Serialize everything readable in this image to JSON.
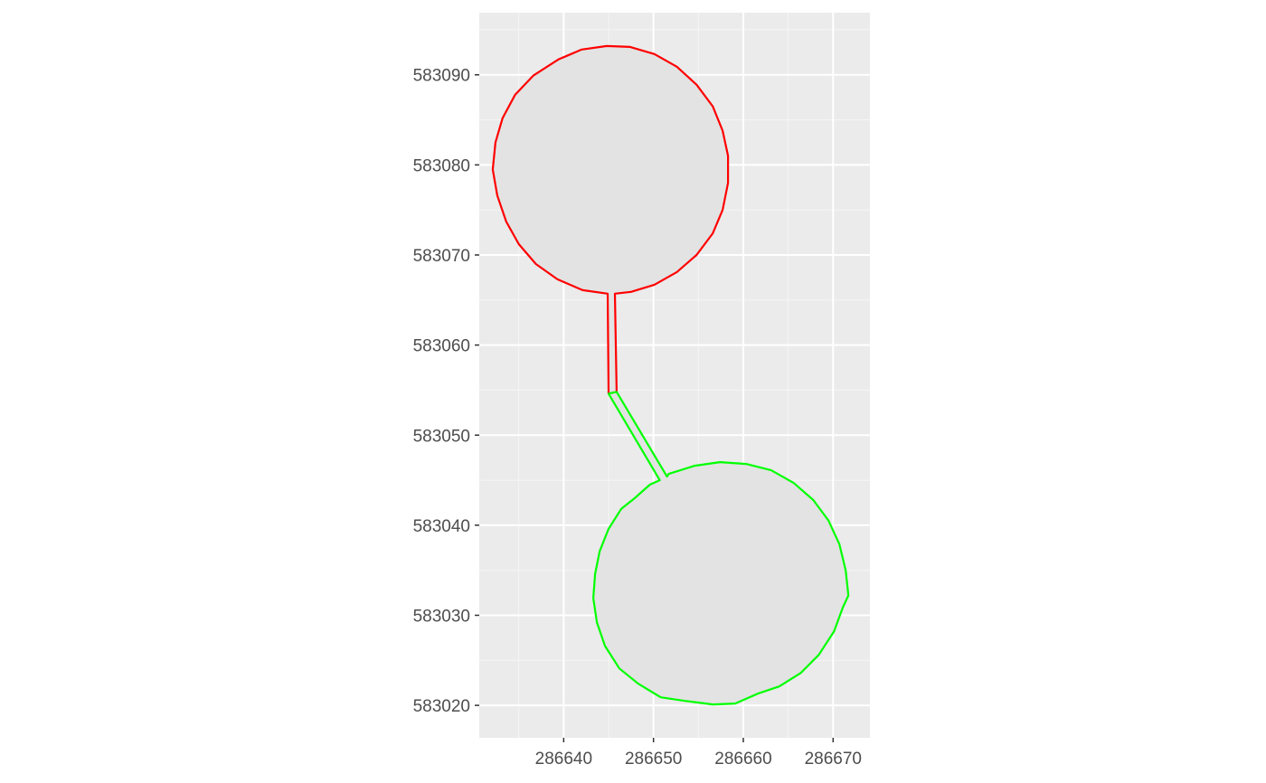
{
  "chart_data": {
    "type": "map",
    "title": "",
    "xlabel": "",
    "ylabel": "",
    "xlim": [
      286630.6,
      286674.1
    ],
    "ylim": [
      583016.4,
      583096.9
    ],
    "x_ticks": [
      286640,
      286650,
      286660,
      286670
    ],
    "y_ticks": [
      583020,
      583030,
      583040,
      583050,
      583060,
      583070,
      583080,
      583090
    ],
    "x_tick_labels": [
      "286640",
      "286650",
      "286660",
      "286670"
    ],
    "y_tick_labels": [
      "583020",
      "583030",
      "583040",
      "583050",
      "583060",
      "583070",
      "583080",
      "583090"
    ],
    "grid": true,
    "legend": "none",
    "colors": {
      "panel_background": "#ebebeb",
      "grid": "#ffffff",
      "polygon_fill": "#e3e3e3",
      "tick_text": "#4d4d4d",
      "tick_mark": "#333333"
    },
    "series": [
      {
        "color": "#ff0000",
        "polygon": [
          [
            286658.3,
            583081.0
          ],
          [
            286658.3,
            583078.0
          ],
          [
            286657.7,
            583075.0
          ],
          [
            286656.6,
            583072.4
          ],
          [
            286654.8,
            583070.0
          ],
          [
            286652.6,
            583068.1
          ],
          [
            286650.1,
            583066.7
          ],
          [
            286647.5,
            583065.9
          ],
          [
            286645.7,
            583065.7
          ],
          [
            286645.9,
            583054.8
          ],
          [
            286645.0,
            583054.6
          ],
          [
            286644.9,
            583065.7
          ],
          [
            286642.1,
            583066.1
          ],
          [
            286639.3,
            583067.3
          ],
          [
            286636.9,
            583069.0
          ],
          [
            286635.0,
            583071.2
          ],
          [
            286633.6,
            583073.7
          ],
          [
            286632.6,
            583076.6
          ],
          [
            286632.1,
            583079.5
          ],
          [
            286632.4,
            583082.5
          ],
          [
            286633.2,
            583085.2
          ],
          [
            286634.6,
            583087.8
          ],
          [
            286636.6,
            583089.9
          ],
          [
            286639.4,
            583091.7
          ],
          [
            286642.0,
            583092.8
          ],
          [
            286644.8,
            583093.2
          ],
          [
            286647.4,
            583093.1
          ],
          [
            286650.1,
            583092.3
          ],
          [
            286652.6,
            583090.9
          ],
          [
            286654.8,
            583088.9
          ],
          [
            286656.6,
            583086.5
          ],
          [
            286657.7,
            583083.8
          ],
          [
            286658.3,
            583081.0
          ]
        ]
      },
      {
        "color": "#00ff00",
        "polygon": [
          [
            286671.7,
            583032.2
          ],
          [
            286671.4,
            583035.0
          ],
          [
            286670.7,
            583037.9
          ],
          [
            286669.5,
            583040.5
          ],
          [
            286667.8,
            583042.8
          ],
          [
            286665.6,
            583044.7
          ],
          [
            286663.1,
            583046.1
          ],
          [
            286660.3,
            583046.8
          ],
          [
            286657.4,
            583047.0
          ],
          [
            286654.6,
            583046.6
          ],
          [
            286651.7,
            583045.7
          ],
          [
            286651.5,
            583045.4
          ],
          [
            286645.9,
            583054.8
          ],
          [
            286645.0,
            583054.6
          ],
          [
            286650.7,
            583045.0
          ],
          [
            286649.6,
            583044.5
          ],
          [
            286647.9,
            583043.0
          ],
          [
            286646.4,
            583041.8
          ],
          [
            286645.0,
            583039.6
          ],
          [
            286644.0,
            583037.1
          ],
          [
            286643.5,
            583034.6
          ],
          [
            286643.3,
            583031.9
          ],
          [
            286643.7,
            583029.2
          ],
          [
            286644.6,
            583026.6
          ],
          [
            286646.2,
            583024.1
          ],
          [
            286648.3,
            583022.4
          ],
          [
            286650.8,
            583020.9
          ],
          [
            286653.5,
            583020.5
          ],
          [
            286656.6,
            583020.1
          ],
          [
            286659.1,
            583020.2
          ],
          [
            286661.6,
            583021.3
          ],
          [
            286664.0,
            583022.1
          ],
          [
            286666.4,
            583023.6
          ],
          [
            286668.4,
            583025.6
          ],
          [
            286670.1,
            583028.2
          ],
          [
            286671.1,
            583030.9
          ],
          [
            286671.7,
            583032.2
          ]
        ]
      }
    ]
  }
}
